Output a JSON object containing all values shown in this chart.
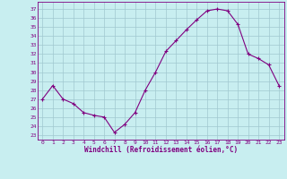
{
  "x": [
    0,
    1,
    2,
    3,
    4,
    5,
    6,
    7,
    8,
    9,
    10,
    11,
    12,
    13,
    14,
    15,
    16,
    17,
    18,
    19,
    20,
    21,
    22,
    23
  ],
  "y": [
    27.0,
    28.5,
    27.0,
    26.5,
    25.5,
    25.2,
    25.0,
    23.3,
    24.2,
    25.5,
    28.0,
    30.0,
    32.3,
    33.5,
    34.7,
    35.8,
    36.8,
    37.0,
    36.8,
    35.3,
    32.0,
    31.5,
    30.8,
    28.5
  ],
  "line_color": "#800080",
  "marker": "+",
  "bg_color": "#c8eef0",
  "grid_color": "#a0c8d0",
  "xlabel": "Windchill (Refroidissement éolien,°C)",
  "ylabel_ticks": [
    23,
    24,
    25,
    26,
    27,
    28,
    29,
    30,
    31,
    32,
    33,
    34,
    35,
    36,
    37
  ],
  "ylim": [
    22.5,
    37.8
  ],
  "xlim": [
    -0.5,
    23.5
  ],
  "xlabel_color": "#800080",
  "tick_color": "#800080",
  "spine_color": "#800080",
  "tick_fontsize": 4.5,
  "xlabel_fontsize": 5.5,
  "linewidth": 0.8,
  "markersize": 3
}
